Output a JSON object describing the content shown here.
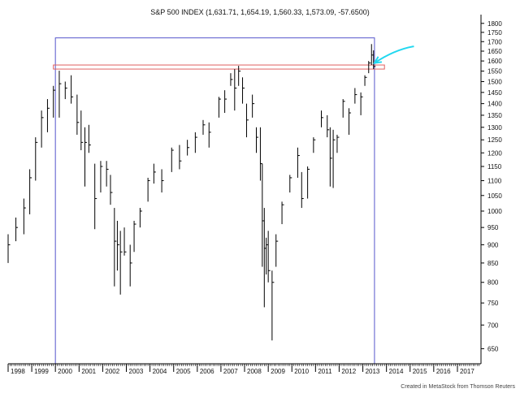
{
  "chart_data": {
    "type": "bar",
    "subtype": "ohlc",
    "title": "S&P 500 INDEX (1,631.71, 1,654.19, 1,560.33, 1,573.09, -57.6500)",
    "credit": "Created in MetaStock from Thomson Reuters",
    "yscale": "log",
    "ylim": [
      620,
      1850
    ],
    "y_ticks": [
      650,
      700,
      750,
      800,
      850,
      900,
      950,
      1000,
      1050,
      1100,
      1150,
      1200,
      1250,
      1300,
      1350,
      1400,
      1450,
      1500,
      1550,
      1600,
      1650,
      1700,
      1750,
      1800
    ],
    "x_ticks": [
      "1998",
      "1999",
      "2000",
      "2001",
      "2002",
      "2003",
      "2004",
      "2005",
      "2006",
      "2007",
      "2008",
      "2009",
      "2010",
      "2011",
      "2012",
      "2013",
      "2014",
      "2015",
      "2016",
      "2017"
    ],
    "xlim": [
      "1998-01-01",
      "2017-12-31"
    ],
    "colors": {
      "bars": "#000000",
      "box": "#5555cc",
      "band": "#e06060",
      "arrow": "#22d8f0",
      "grid_edge": "#000000"
    },
    "series": [
      {
        "values": [
          {
            "date": "1998-01-01",
            "high": 930,
            "low": 850,
            "close": 900
          },
          {
            "date": "1998-05-01",
            "high": 980,
            "low": 910,
            "close": 950
          },
          {
            "date": "1998-09-01",
            "high": 1040,
            "low": 930,
            "close": 1010
          },
          {
            "date": "1998-12-01",
            "high": 1140,
            "low": 990,
            "close": 1110
          },
          {
            "date": "1999-03-01",
            "high": 1260,
            "low": 1100,
            "close": 1240
          },
          {
            "date": "1999-06-01",
            "high": 1370,
            "low": 1220,
            "close": 1340
          },
          {
            "date": "1999-09-01",
            "high": 1420,
            "low": 1280,
            "close": 1380
          },
          {
            "date": "1999-12-01",
            "high": 1480,
            "low": 1340,
            "close": 1460
          },
          {
            "date": "2000-03-01",
            "high": 1552,
            "low": 1340,
            "close": 1490
          },
          {
            "date": "2000-06-01",
            "high": 1500,
            "low": 1420,
            "close": 1470
          },
          {
            "date": "2000-09-01",
            "high": 1530,
            "low": 1400,
            "close": 1430
          },
          {
            "date": "2000-12-01",
            "high": 1440,
            "low": 1270,
            "close": 1320
          },
          {
            "date": "2001-02-01",
            "high": 1370,
            "low": 1210,
            "close": 1240
          },
          {
            "date": "2001-04-01",
            "high": 1300,
            "low": 1080,
            "close": 1240
          },
          {
            "date": "2001-06-01",
            "high": 1310,
            "low": 1200,
            "close": 1230
          },
          {
            "date": "2001-09-01",
            "high": 1160,
            "low": 945,
            "close": 1040
          },
          {
            "date": "2001-12-01",
            "high": 1170,
            "low": 1060,
            "close": 1150
          },
          {
            "date": "2002-03-01",
            "high": 1170,
            "low": 1080,
            "close": 1140
          },
          {
            "date": "2002-05-01",
            "high": 1120,
            "low": 1020,
            "close": 1060
          },
          {
            "date": "2002-07-01",
            "high": 1010,
            "low": 790,
            "close": 910
          },
          {
            "date": "2002-08-15",
            "high": 970,
            "low": 830,
            "close": 900
          },
          {
            "date": "2002-10-01",
            "high": 940,
            "low": 770,
            "close": 880
          },
          {
            "date": "2002-12-01",
            "high": 950,
            "low": 870,
            "close": 880
          },
          {
            "date": "2003-03-01",
            "high": 900,
            "low": 790,
            "close": 850
          },
          {
            "date": "2003-05-01",
            "high": 970,
            "low": 880,
            "close": 960
          },
          {
            "date": "2003-08-01",
            "high": 1010,
            "low": 950,
            "close": 1000
          },
          {
            "date": "2003-12-01",
            "high": 1110,
            "low": 1030,
            "close": 1100
          },
          {
            "date": "2004-03-01",
            "high": 1160,
            "low": 1090,
            "close": 1130
          },
          {
            "date": "2004-07-01",
            "high": 1140,
            "low": 1060,
            "close": 1100
          },
          {
            "date": "2004-12-01",
            "high": 1220,
            "low": 1130,
            "close": 1210
          },
          {
            "date": "2005-04-01",
            "high": 1230,
            "low": 1140,
            "close": 1170
          },
          {
            "date": "2005-08-01",
            "high": 1250,
            "low": 1190,
            "close": 1220
          },
          {
            "date": "2005-12-01",
            "high": 1280,
            "low": 1200,
            "close": 1260
          },
          {
            "date": "2006-04-01",
            "high": 1330,
            "low": 1270,
            "close": 1310
          },
          {
            "date": "2006-07-01",
            "high": 1320,
            "low": 1220,
            "close": 1280
          },
          {
            "date": "2006-12-01",
            "high": 1430,
            "low": 1340,
            "close": 1420
          },
          {
            "date": "2007-03-01",
            "high": 1460,
            "low": 1360,
            "close": 1420
          },
          {
            "date": "2007-06-01",
            "high": 1540,
            "low": 1480,
            "close": 1510
          },
          {
            "date": "2007-08-01",
            "high": 1560,
            "low": 1370,
            "close": 1470
          },
          {
            "date": "2007-10-01",
            "high": 1576,
            "low": 1480,
            "close": 1550
          },
          {
            "date": "2007-12-01",
            "high": 1520,
            "low": 1400,
            "close": 1470
          },
          {
            "date": "2008-02-01",
            "high": 1400,
            "low": 1260,
            "close": 1330
          },
          {
            "date": "2008-05-01",
            "high": 1440,
            "low": 1340,
            "close": 1400
          },
          {
            "date": "2008-07-01",
            "high": 1300,
            "low": 1200,
            "close": 1260
          },
          {
            "date": "2008-09-01",
            "high": 1300,
            "low": 1100,
            "close": 1160
          },
          {
            "date": "2008-10-01",
            "high": 1160,
            "low": 840,
            "close": 970
          },
          {
            "date": "2008-11-01",
            "high": 1010,
            "low": 740,
            "close": 890
          },
          {
            "date": "2008-12-01",
            "high": 920,
            "low": 820,
            "close": 900
          },
          {
            "date": "2009-01-01",
            "high": 940,
            "low": 800,
            "close": 830
          },
          {
            "date": "2009-03-01",
            "high": 830,
            "low": 667,
            "close": 800
          },
          {
            "date": "2009-05-01",
            "high": 930,
            "low": 840,
            "close": 910
          },
          {
            "date": "2009-08-01",
            "high": 1030,
            "low": 960,
            "close": 1020
          },
          {
            "date": "2009-12-01",
            "high": 1120,
            "low": 1060,
            "close": 1110
          },
          {
            "date": "2010-04-01",
            "high": 1220,
            "low": 1110,
            "close": 1190
          },
          {
            "date": "2010-06-01",
            "high": 1130,
            "low": 1010,
            "close": 1040
          },
          {
            "date": "2010-09-01",
            "high": 1150,
            "low": 1040,
            "close": 1140
          },
          {
            "date": "2010-12-01",
            "high": 1260,
            "low": 1200,
            "close": 1250
          },
          {
            "date": "2011-04-01",
            "high": 1370,
            "low": 1300,
            "close": 1340
          },
          {
            "date": "2011-07-01",
            "high": 1350,
            "low": 1260,
            "close": 1290
          },
          {
            "date": "2011-08-15",
            "high": 1300,
            "low": 1080,
            "close": 1180
          },
          {
            "date": "2011-10-01",
            "high": 1290,
            "low": 1075,
            "close": 1250
          },
          {
            "date": "2011-12-01",
            "high": 1270,
            "low": 1200,
            "close": 1260
          },
          {
            "date": "2012-03-01",
            "high": 1420,
            "low": 1340,
            "close": 1410
          },
          {
            "date": "2012-06-01",
            "high": 1380,
            "low": 1270,
            "close": 1360
          },
          {
            "date": "2012-09-01",
            "high": 1470,
            "low": 1400,
            "close": 1440
          },
          {
            "date": "2012-12-01",
            "high": 1450,
            "low": 1350,
            "close": 1430
          },
          {
            "date": "2013-02-01",
            "high": 1530,
            "low": 1480,
            "close": 1520
          },
          {
            "date": "2013-04-01",
            "high": 1600,
            "low": 1540,
            "close": 1590
          },
          {
            "date": "2013-05-15",
            "high": 1687,
            "low": 1580,
            "close": 1630
          },
          {
            "date": "2013-06-15",
            "high": 1654,
            "low": 1560,
            "close": 1573
          }
        ]
      }
    ],
    "annotations": {
      "box": {
        "start": "2000-01-01",
        "end": "2013-06-30",
        "top": 1720,
        "bottom": 620
      },
      "resistance_band": {
        "start": "1999-12-01",
        "end": "2013-12-01",
        "low": 1560,
        "high": 1580
      },
      "arrow": {
        "from": {
          "date": "2015-03-01",
          "value": 1675
        },
        "to": {
          "date": "2013-07-01",
          "value": 1590
        }
      }
    }
  }
}
